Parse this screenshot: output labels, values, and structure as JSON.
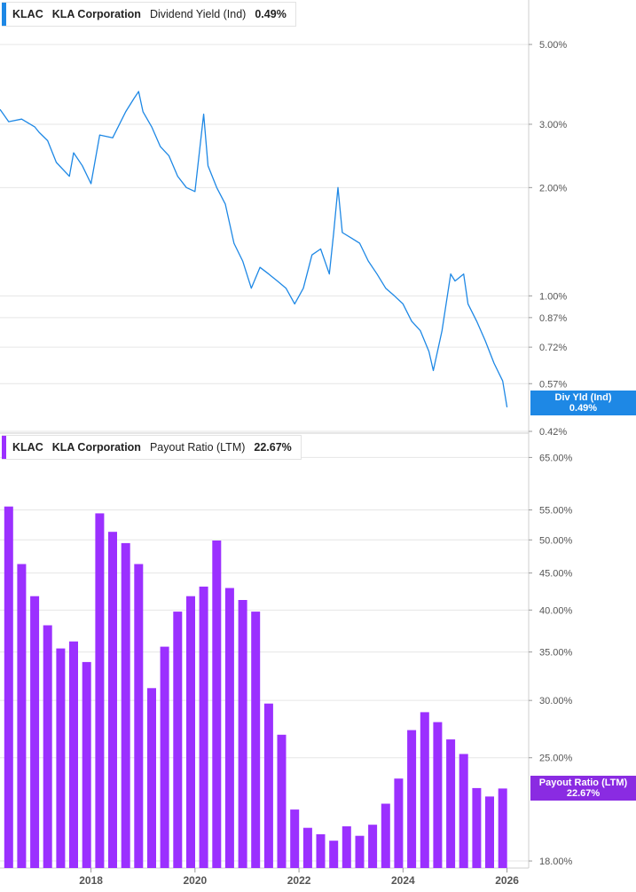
{
  "colors": {
    "yield_line": "#1e88e5",
    "yield_flag": "#1e88e5",
    "payout_bar": "#9b30ff",
    "payout_flag": "#8a2be2",
    "gridline": "#e6e6e6",
    "axis_text": "#555555"
  },
  "top_panel": {
    "ticker": "KLAC",
    "company": "KLA Corporation",
    "metric": "Dividend Yield (Ind)",
    "value": "0.49%",
    "flag_label": "Div Yld (Ind)",
    "flag_value": "0.49%"
  },
  "bottom_panel": {
    "ticker": "KLAC",
    "company": "KLA Corporation",
    "metric": "Payout Ratio (LTM)",
    "value": "22.67%",
    "flag_label": "Payout Ratio (LTM)",
    "flag_value": "22.67%"
  },
  "chart_data": [
    {
      "type": "line",
      "name": "Dividend Yield (Ind)",
      "y_scale": "log",
      "ylim": [
        0.42,
        6.0
      ],
      "xlim": [
        "2016-04-01",
        "2026-06-01"
      ],
      "y_ticks": [
        "5.00%",
        "3.00%",
        "2.00%",
        "1.00%",
        "0.87%",
        "0.72%",
        "0.57%",
        "0.42%"
      ],
      "y_tick_values": [
        5.0,
        3.0,
        2.0,
        1.0,
        0.87,
        0.72,
        0.57,
        0.42
      ],
      "x": [
        "2016-04",
        "2016-06",
        "2016-09",
        "2016-12",
        "2017-01",
        "2017-03",
        "2017-05",
        "2017-08",
        "2017-09",
        "2017-11",
        "2018-01",
        "2018-03",
        "2018-06",
        "2018-09",
        "2018-11",
        "2018-12",
        "2019-01",
        "2019-03",
        "2019-05",
        "2019-07",
        "2019-09",
        "2019-11",
        "2020-01",
        "2020-03",
        "2020-04",
        "2020-06",
        "2020-08",
        "2020-10",
        "2020-12",
        "2021-02",
        "2021-04",
        "2021-06",
        "2021-08",
        "2021-10",
        "2021-12",
        "2022-02",
        "2022-04",
        "2022-06",
        "2022-08",
        "2022-09",
        "2022-10",
        "2022-11",
        "2023-01",
        "2023-03",
        "2023-05",
        "2023-07",
        "2023-09",
        "2023-11",
        "2024-01",
        "2024-03",
        "2024-05",
        "2024-07",
        "2024-08",
        "2024-10",
        "2024-12",
        "2025-01",
        "2025-03",
        "2025-04",
        "2025-06",
        "2025-08",
        "2025-10",
        "2025-12",
        "2026-01"
      ],
      "y": [
        3.3,
        3.05,
        3.1,
        2.95,
        2.85,
        2.7,
        2.35,
        2.15,
        2.5,
        2.3,
        2.05,
        2.8,
        2.75,
        3.25,
        3.55,
        3.7,
        3.25,
        2.95,
        2.6,
        2.45,
        2.15,
        2.0,
        1.95,
        3.2,
        2.3,
        2.0,
        1.8,
        1.4,
        1.25,
        1.05,
        1.2,
        1.15,
        1.1,
        1.05,
        0.95,
        1.05,
        1.3,
        1.35,
        1.15,
        1.5,
        2.0,
        1.5,
        1.45,
        1.4,
        1.25,
        1.15,
        1.05,
        1.0,
        0.95,
        0.85,
        0.8,
        0.7,
        0.62,
        0.8,
        1.15,
        1.1,
        1.15,
        0.95,
        0.85,
        0.75,
        0.65,
        0.58,
        0.49
      ]
    },
    {
      "type": "bar",
      "name": "Payout Ratio (LTM)",
      "y_scale": "log",
      "ylim": [
        17.7,
        66.0
      ],
      "y_ticks": [
        "65.00%",
        "55.00%",
        "50.00%",
        "45.00%",
        "40.00%",
        "35.00%",
        "30.00%",
        "25.00%",
        "18.00%"
      ],
      "y_tick_values": [
        65,
        55,
        50,
        45,
        40,
        35,
        30,
        25,
        18
      ],
      "x_ticks": [
        "2018",
        "2020",
        "2022",
        "2024",
        "2026"
      ],
      "x_tick_values": [
        "2018-01",
        "2020-01",
        "2022-01",
        "2024-01",
        "2026-01"
      ],
      "x": [
        "2016-06",
        "2016-09",
        "2016-12",
        "2017-03",
        "2017-06",
        "2017-09",
        "2017-12",
        "2018-03",
        "2018-06",
        "2018-09",
        "2018-12",
        "2019-03",
        "2019-06",
        "2019-09",
        "2019-12",
        "2020-03",
        "2020-06",
        "2020-09",
        "2020-12",
        "2021-03",
        "2021-06",
        "2021-09",
        "2021-12",
        "2022-03",
        "2022-06",
        "2022-09",
        "2022-12",
        "2023-03",
        "2023-06",
        "2023-09",
        "2023-12",
        "2024-03",
        "2024-06",
        "2024-09",
        "2024-12",
        "2025-03",
        "2025-06",
        "2025-09",
        "2025-12"
      ],
      "values": [
        55.6,
        46.3,
        41.8,
        38.1,
        35.4,
        36.2,
        33.9,
        54.4,
        51.3,
        49.5,
        46.3,
        31.2,
        35.6,
        39.8,
        41.8,
        43.1,
        49.9,
        42.9,
        41.3,
        39.8,
        29.7,
        26.9,
        21.2,
        20.0,
        19.6,
        19.2,
        20.1,
        19.5,
        20.2,
        21.6,
        23.4,
        27.3,
        28.9,
        28.0,
        26.5,
        25.3,
        22.7,
        22.1,
        22.67
      ]
    }
  ]
}
